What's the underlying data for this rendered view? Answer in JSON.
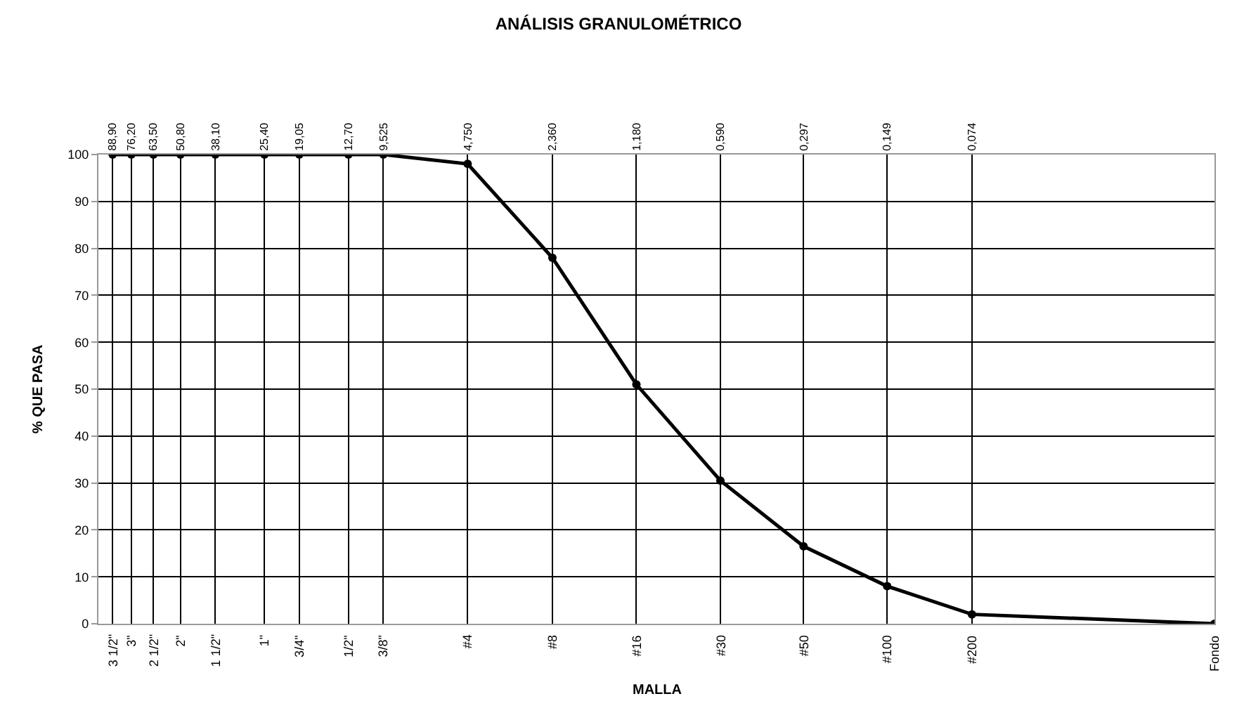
{
  "chart_data": {
    "type": "line",
    "title": "ANÁLISIS GRANULOMÉTRICO",
    "xlabel": "MALLA",
    "ylabel": "% QUE PASA",
    "x": [
      88.9,
      76.2,
      63.5,
      50.8,
      38.1,
      25.4,
      19.05,
      12.7,
      9.525,
      4.75,
      2.36,
      1.18,
      0.59,
      0.297,
      0.149,
      0.074,
      0.01
    ],
    "series": [
      {
        "color": "#000000",
        "values": [
          100,
          100,
          100,
          100,
          100,
          100,
          100,
          100,
          100,
          98,
          78,
          51,
          30.5,
          16.5,
          8,
          2,
          0
        ]
      }
    ],
    "log": "x",
    "xlim": [
      100,
      0.01
    ],
    "ylim": [
      0,
      100
    ],
    "yticks": [
      0,
      10,
      20,
      30,
      40,
      50,
      60,
      70,
      80,
      90,
      100
    ],
    "xticks": [
      {
        "value": 88.9,
        "label": "88,90"
      },
      {
        "value": 76.2,
        "label": "76,20"
      },
      {
        "value": 63.5,
        "label": "63,50"
      },
      {
        "value": 50.8,
        "label": "50,80"
      },
      {
        "value": 38.1,
        "label": "38,10"
      },
      {
        "value": 25.4,
        "label": "25,40"
      },
      {
        "value": 19.05,
        "label": "19,05"
      },
      {
        "value": 12.7,
        "label": "12,70"
      },
      {
        "value": 9.525,
        "label": "9,525"
      },
      {
        "value": 4.75,
        "label": "4,750"
      },
      {
        "value": 2.36,
        "label": "2,360"
      },
      {
        "value": 1.18,
        "label": "1,180"
      },
      {
        "value": 0.59,
        "label": "0,590"
      },
      {
        "value": 0.297,
        "label": "0,297"
      },
      {
        "value": 0.149,
        "label": "0,149"
      },
      {
        "value": 0.074,
        "label": "0,074"
      }
    ],
    "annotations": [
      "3 1/2\"",
      "3\"",
      "2 1/2\"",
      "2\"",
      "1 1/2\"",
      "1\"",
      "3/4\"",
      "1/2\"",
      "3/8\"",
      "#4",
      "#8",
      "#16",
      "#30",
      "#50",
      "#100",
      "#200",
      "Fondo"
    ],
    "grid": true,
    "marker": "circle",
    "line_style": "solid"
  }
}
